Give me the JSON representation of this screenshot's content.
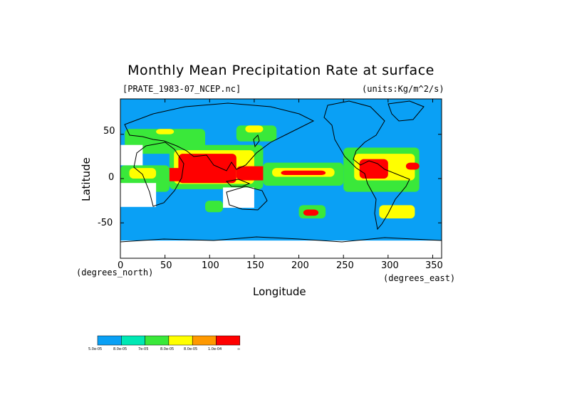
{
  "chart_data": {
    "type": "heatmap",
    "title": "Monthly Mean Precipitation Rate at surface",
    "source_label": "[PRATE_1983-07_NCEP.nc]",
    "units_label": "(units:Kg/m^2/s)",
    "xlabel": "Longitude",
    "ylabel": "Latitude",
    "x_unit_label": "(degrees_east)",
    "y_unit_label": "(degrees_north)",
    "xlim": [
      0,
      360
    ],
    "ylim": [
      -90,
      90
    ],
    "x_ticks": [
      "0",
      "50",
      "100",
      "150",
      "200",
      "250",
      "300",
      "350"
    ],
    "y_ticks": [
      "50",
      "0",
      "-50"
    ],
    "grid": false,
    "legend": {
      "placement": "bottom-left",
      "colors": [
        "#0aa0f5",
        "#00e8b4",
        "#3ae83a",
        "#ffff00",
        "#ff9900",
        "#ff0000"
      ],
      "labels": [
        "5.0e-05",
        "8.0e-05",
        "7e-05",
        "8.0e-05",
        "8.0e-05",
        "1.0e-04",
        "∞"
      ]
    },
    "regions": [
      {
        "level": 2,
        "lon": [
          5,
          95
        ],
        "lat": [
          28,
          56
        ]
      },
      {
        "level": 3,
        "lon": [
          40,
          60
        ],
        "lat": [
          50,
          56
        ]
      },
      {
        "level": 2,
        "lon": [
          130,
          175
        ],
        "lat": [
          42,
          60
        ]
      },
      {
        "level": 3,
        "lon": [
          140,
          160
        ],
        "lat": [
          52,
          60
        ]
      },
      {
        "level": 2,
        "lon": [
          55,
          160
        ],
        "lat": [
          -12,
          38
        ]
      },
      {
        "level": 3,
        "lon": [
          60,
          150
        ],
        "lat": [
          -6,
          32
        ]
      },
      {
        "level": 5,
        "lon": [
          65,
          130
        ],
        "lat": [
          -5,
          28
        ]
      },
      {
        "level": 5,
        "lon": [
          50,
          75
        ],
        "lat": [
          -3,
          12
        ]
      },
      {
        "level": 5,
        "lon": [
          130,
          180
        ],
        "lat": [
          -2,
          14
        ]
      },
      {
        "level": 2,
        "lon": [
          160,
          250
        ],
        "lat": [
          -8,
          18
        ]
      },
      {
        "level": 3,
        "lon": [
          170,
          240
        ],
        "lat": [
          2,
          12
        ]
      },
      {
        "level": 5,
        "lon": [
          180,
          230
        ],
        "lat": [
          4,
          9
        ]
      },
      {
        "level": 2,
        "lon": [
          250,
          335
        ],
        "lat": [
          -15,
          35
        ]
      },
      {
        "level": 3,
        "lon": [
          262,
          330
        ],
        "lat": [
          -2,
          28
        ]
      },
      {
        "level": 5,
        "lon": [
          268,
          300
        ],
        "lat": [
          0,
          22
        ]
      },
      {
        "level": 5,
        "lon": [
          320,
          335
        ],
        "lat": [
          10,
          18
        ]
      },
      {
        "level": 3,
        "lon": [
          290,
          330
        ],
        "lat": [
          -45,
          -30
        ]
      },
      {
        "level": 2,
        "lon": [
          0,
          55
        ],
        "lat": [
          -15,
          15
        ]
      },
      {
        "level": 3,
        "lon": [
          10,
          40
        ],
        "lat": [
          0,
          12
        ]
      },
      {
        "level": 2,
        "lon": [
          200,
          230
        ],
        "lat": [
          -45,
          -30
        ]
      },
      {
        "level": 5,
        "lon": [
          205,
          222
        ],
        "lat": [
          -42,
          -35
        ]
      },
      {
        "level": 2,
        "lon": [
          95,
          115
        ],
        "lat": [
          -38,
          -25
        ]
      }
    ],
    "no_data_regions": [
      {
        "lon": [
          0,
          25
        ],
        "lat": [
          15,
          38
        ]
      },
      {
        "lon": [
          0,
          40
        ],
        "lat": [
          -32,
          -5
        ]
      },
      {
        "lon": [
          115,
          150
        ],
        "lat": [
          -33,
          -10
        ]
      },
      {
        "lon": [
          0,
          360
        ],
        "lat": [
          -90,
          -70
        ]
      }
    ]
  }
}
